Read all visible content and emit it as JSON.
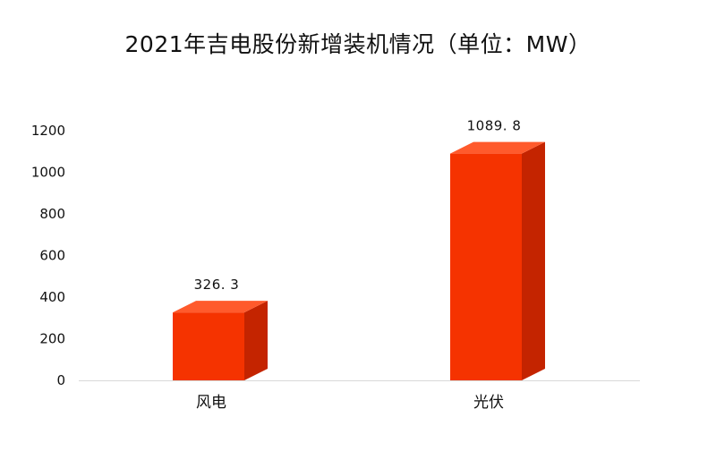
{
  "chart_data": {
    "type": "bar",
    "title": "2021年吉电股份新增装机情况（单位：MW）",
    "categories": [
      "风电",
      "光伏"
    ],
    "values": [
      326.3,
      1089.8
    ],
    "data_labels": [
      "326. 3",
      "1089. 8"
    ],
    "ylim": [
      0,
      1200
    ],
    "yticks": [
      "0",
      "200",
      "400",
      "600",
      "800",
      "1000",
      "1200"
    ],
    "xlabel": "",
    "ylabel": "",
    "grid": false,
    "legend": "none",
    "style": "3d-bar",
    "colors": {
      "bar_front": "#F53300",
      "bar_side": "#C42400",
      "bar_top": "#FF5A2C",
      "axis": "#D9D9D9"
    }
  }
}
